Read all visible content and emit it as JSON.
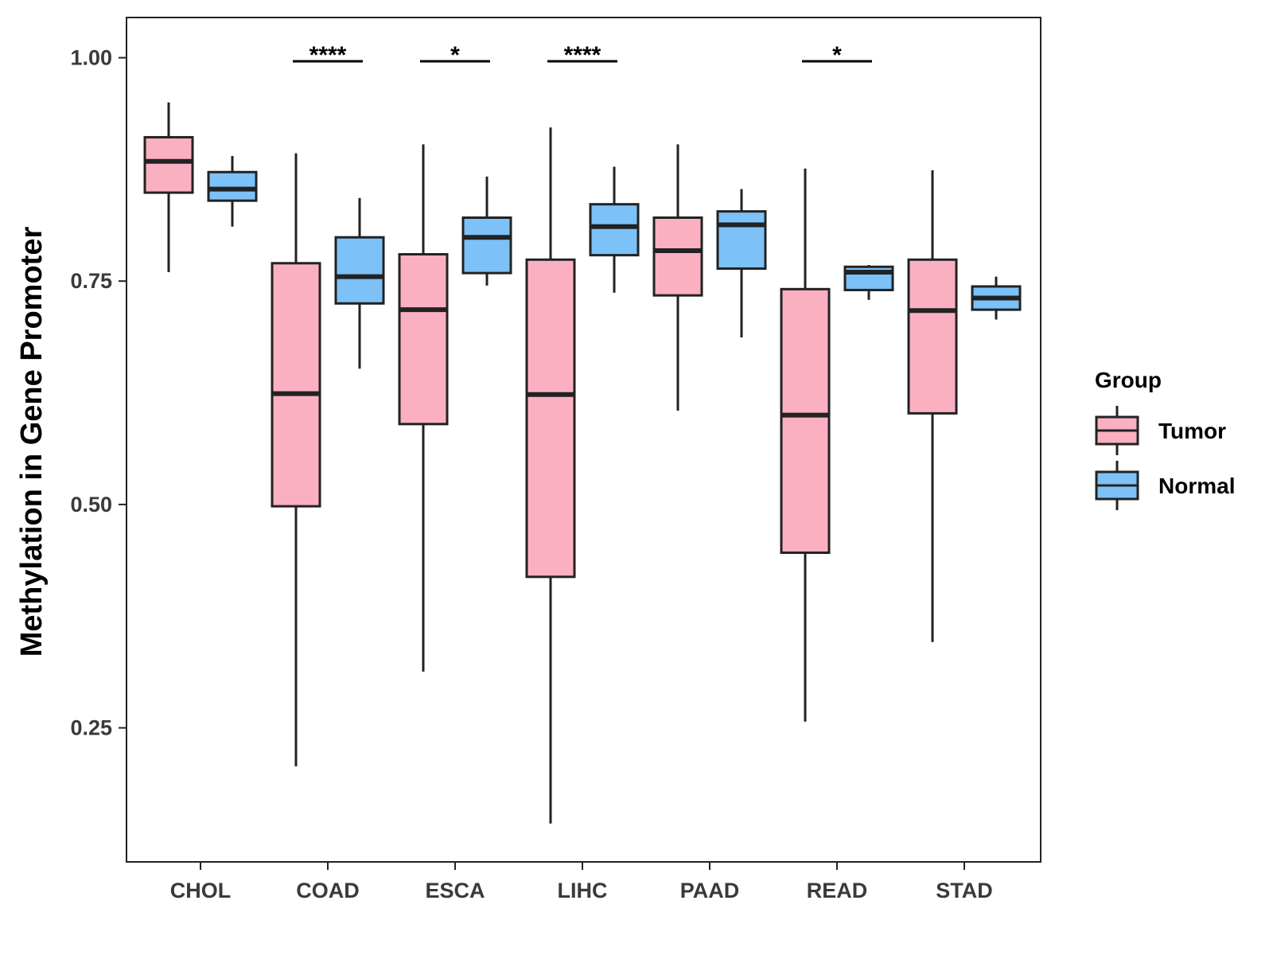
{
  "chart_data": {
    "type": "boxplot",
    "title": "",
    "xlabel": "",
    "ylabel": "Methylation in Gene Promoter",
    "ylim": [
      0.1,
      1.045
    ],
    "yticks": [
      0.25,
      0.5,
      0.75,
      1.0
    ],
    "ytick_labels": [
      "0.25",
      "0.50",
      "0.75",
      "1.00"
    ],
    "grid": false,
    "legend": {
      "title": "Group",
      "position": "right",
      "entries": [
        {
          "name": "Tumor",
          "color": "#FBB0C2"
        },
        {
          "name": "Normal",
          "color": "#7CC1F8"
        }
      ]
    },
    "categories": [
      "CHOL",
      "COAD",
      "ESCA",
      "LIHC",
      "PAAD",
      "READ",
      "STAD"
    ],
    "series": [
      {
        "name": "Tumor",
        "color": "#FBB0C2",
        "boxes": [
          {
            "whisker_low": 0.76,
            "q1": 0.849,
            "median": 0.884,
            "q3": 0.911,
            "whisker_high": 0.95
          },
          {
            "whisker_low": 0.207,
            "q1": 0.498,
            "median": 0.624,
            "q3": 0.77,
            "whisker_high": 0.893
          },
          {
            "whisker_low": 0.313,
            "q1": 0.59,
            "median": 0.718,
            "q3": 0.78,
            "whisker_high": 0.903
          },
          {
            "whisker_low": 0.143,
            "q1": 0.419,
            "median": 0.623,
            "q3": 0.774,
            "whisker_high": 0.922
          },
          {
            "whisker_low": 0.605,
            "q1": 0.734,
            "median": 0.784,
            "q3": 0.821,
            "whisker_high": 0.903
          },
          {
            "whisker_low": 0.257,
            "q1": 0.446,
            "median": 0.6,
            "q3": 0.741,
            "whisker_high": 0.876
          },
          {
            "whisker_low": 0.346,
            "q1": 0.602,
            "median": 0.717,
            "q3": 0.774,
            "whisker_high": 0.874
          }
        ]
      },
      {
        "name": "Normal",
        "color": "#7CC1F8",
        "boxes": [
          {
            "whisker_low": 0.811,
            "q1": 0.84,
            "median": 0.853,
            "q3": 0.872,
            "whisker_high": 0.89
          },
          {
            "whisker_low": 0.652,
            "q1": 0.725,
            "median": 0.755,
            "q3": 0.799,
            "whisker_high": 0.843
          },
          {
            "whisker_low": 0.745,
            "q1": 0.759,
            "median": 0.799,
            "q3": 0.821,
            "whisker_high": 0.867
          },
          {
            "whisker_low": 0.737,
            "q1": 0.779,
            "median": 0.811,
            "q3": 0.836,
            "whisker_high": 0.878
          },
          {
            "whisker_low": 0.687,
            "q1": 0.764,
            "median": 0.813,
            "q3": 0.828,
            "whisker_high": 0.853
          },
          {
            "whisker_low": 0.729,
            "q1": 0.74,
            "median": 0.76,
            "q3": 0.766,
            "whisker_high": 0.768
          },
          {
            "whisker_low": 0.707,
            "q1": 0.718,
            "median": 0.731,
            "q3": 0.744,
            "whisker_high": 0.755
          }
        ]
      }
    ],
    "significance": [
      {
        "category": "COAD",
        "label": "****",
        "y": 0.996
      },
      {
        "category": "ESCA",
        "label": "*",
        "y": 0.996
      },
      {
        "category": "LIHC",
        "label": "****",
        "y": 0.996
      },
      {
        "category": "READ",
        "label": "*",
        "y": 0.996
      }
    ]
  }
}
